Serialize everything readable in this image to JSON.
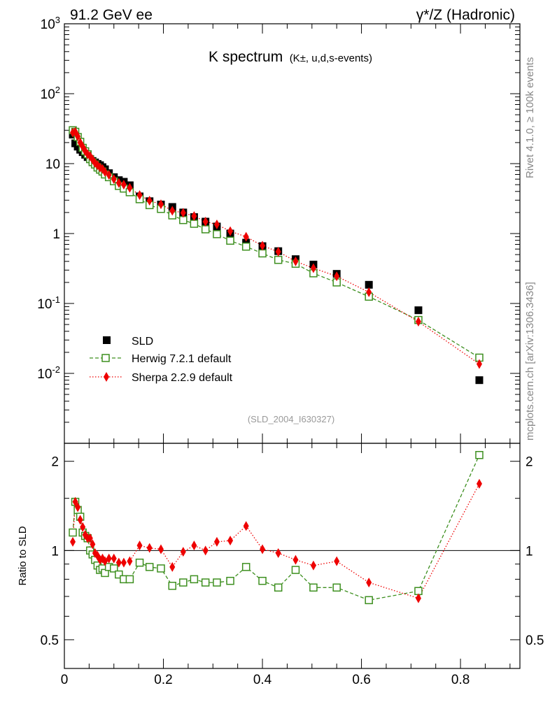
{
  "header": {
    "left": "91.2 GeV ee",
    "right": "γ*/Z (Hadronic)"
  },
  "side_labels": {
    "rivet": "Rivet 4.1.0, ≥ 100k events",
    "mcplots": "mcplots.cern.ch [arXiv:1306.3436]"
  },
  "chart_data": [
    {
      "type": "scatter",
      "title": "K spectrum",
      "title_sub": "(K±, u,d,s-events)",
      "watermark": "(SLD_2004_I630327)",
      "xlabel": "",
      "ylabel": "",
      "yscale": "log",
      "xlim": [
        0,
        0.92
      ],
      "ylim": [
        0.001,
        1000
      ],
      "ytick_labels": [
        "10^{-2}",
        "10^{-1}",
        "1",
        "10",
        "10^{2}",
        "10^{3}"
      ],
      "legend_position": "lower-left",
      "x": [
        0.017,
        0.022,
        0.027,
        0.032,
        0.037,
        0.042,
        0.047,
        0.052,
        0.057,
        0.062,
        0.067,
        0.072,
        0.077,
        0.082,
        0.09,
        0.1,
        0.11,
        0.12,
        0.132,
        0.152,
        0.172,
        0.195,
        0.218,
        0.24,
        0.262,
        0.285,
        0.308,
        0.335,
        0.367,
        0.4,
        0.432,
        0.467,
        0.503,
        0.55,
        0.615,
        0.715,
        0.838
      ],
      "series": [
        {
          "name": "SLD",
          "color": "#000000",
          "marker": "square-filled",
          "values": [
            26.0,
            19.5,
            17.5,
            15.8,
            14.6,
            13.4,
            12.4,
            11.6,
            10.9,
            10.4,
            9.9,
            9.5,
            8.9,
            8.3,
            7.3,
            6.4,
            5.8,
            5.5,
            4.9,
            3.4,
            2.9,
            2.6,
            2.4,
            2.0,
            1.72,
            1.48,
            1.26,
            1.0,
            0.74,
            0.66,
            0.56,
            0.43,
            0.36,
            0.265,
            0.185,
            0.08,
            0.008
          ]
        },
        {
          "name": "Herwig 7.2.1 default",
          "color": "#3d8f1f",
          "marker": "square-open",
          "line": "dashed",
          "values": [
            30.0,
            28.5,
            24.0,
            20.5,
            16.8,
            15.0,
            13.6,
            11.6,
            10.5,
            9.7,
            8.8,
            8.2,
            7.7,
            7.0,
            6.4,
            5.6,
            4.8,
            4.4,
            3.9,
            3.1,
            2.55,
            2.25,
            1.82,
            1.56,
            1.38,
            1.15,
            0.98,
            0.79,
            0.65,
            0.52,
            0.42,
            0.37,
            0.27,
            0.2,
            0.125,
            0.058,
            0.0168
          ]
        },
        {
          "name": "Sherpa 2.2.9 default",
          "color": "#ee0000",
          "marker": "diamond-filled",
          "line": "dotted",
          "values": [
            27.8,
            28.5,
            24.5,
            20.0,
            17.5,
            15.2,
            13.6,
            12.8,
            11.4,
            10.2,
            9.5,
            8.8,
            8.4,
            7.6,
            6.9,
            6.0,
            5.3,
            5.0,
            4.5,
            3.55,
            2.95,
            2.62,
            2.12,
            1.98,
            1.78,
            1.48,
            1.35,
            1.08,
            0.9,
            0.67,
            0.55,
            0.4,
            0.32,
            0.245,
            0.145,
            0.055,
            0.0136
          ]
        }
      ]
    },
    {
      "type": "scatter",
      "title": "",
      "xlabel": "",
      "ylabel": "Ratio to SLD",
      "yscale": "log",
      "xlim": [
        0,
        0.92
      ],
      "ylim": [
        0.4,
        2.3
      ],
      "reference_line": 1,
      "xtick_labels": [
        "0",
        "0.2",
        "0.4",
        "0.6",
        "0.8"
      ],
      "ytick_labels": [
        "0.5",
        "1",
        "2"
      ],
      "x": [
        0.017,
        0.022,
        0.027,
        0.032,
        0.037,
        0.042,
        0.047,
        0.052,
        0.057,
        0.062,
        0.067,
        0.072,
        0.077,
        0.082,
        0.09,
        0.1,
        0.11,
        0.12,
        0.132,
        0.152,
        0.172,
        0.195,
        0.218,
        0.24,
        0.262,
        0.285,
        0.308,
        0.335,
        0.367,
        0.4,
        0.432,
        0.467,
        0.503,
        0.55,
        0.615,
        0.715,
        0.838
      ],
      "series": [
        {
          "name": "Herwig 7.2.1 default",
          "color": "#3d8f1f",
          "marker": "square-open",
          "line": "dashed",
          "values": [
            1.15,
            1.46,
            1.37,
            1.3,
            1.15,
            1.12,
            1.1,
            1.0,
            0.97,
            0.93,
            0.89,
            0.86,
            0.87,
            0.84,
            0.88,
            0.87,
            0.83,
            0.8,
            0.8,
            0.91,
            0.88,
            0.87,
            0.76,
            0.78,
            0.8,
            0.78,
            0.78,
            0.79,
            0.88,
            0.79,
            0.75,
            0.86,
            0.75,
            0.75,
            0.68,
            0.73,
            2.1
          ]
        },
        {
          "name": "Sherpa 2.2.9 default",
          "color": "#ee0000",
          "marker": "diamond-filled",
          "line": "dotted",
          "values": [
            1.07,
            1.46,
            1.4,
            1.27,
            1.2,
            1.13,
            1.1,
            1.1,
            1.05,
            0.98,
            0.96,
            0.93,
            0.94,
            0.92,
            0.94,
            0.94,
            0.91,
            0.91,
            0.92,
            1.04,
            1.02,
            1.01,
            0.88,
            0.99,
            1.04,
            1.0,
            1.07,
            1.08,
            1.21,
            1.01,
            0.98,
            0.93,
            0.89,
            0.92,
            0.78,
            0.69,
            1.68
          ]
        }
      ]
    }
  ]
}
